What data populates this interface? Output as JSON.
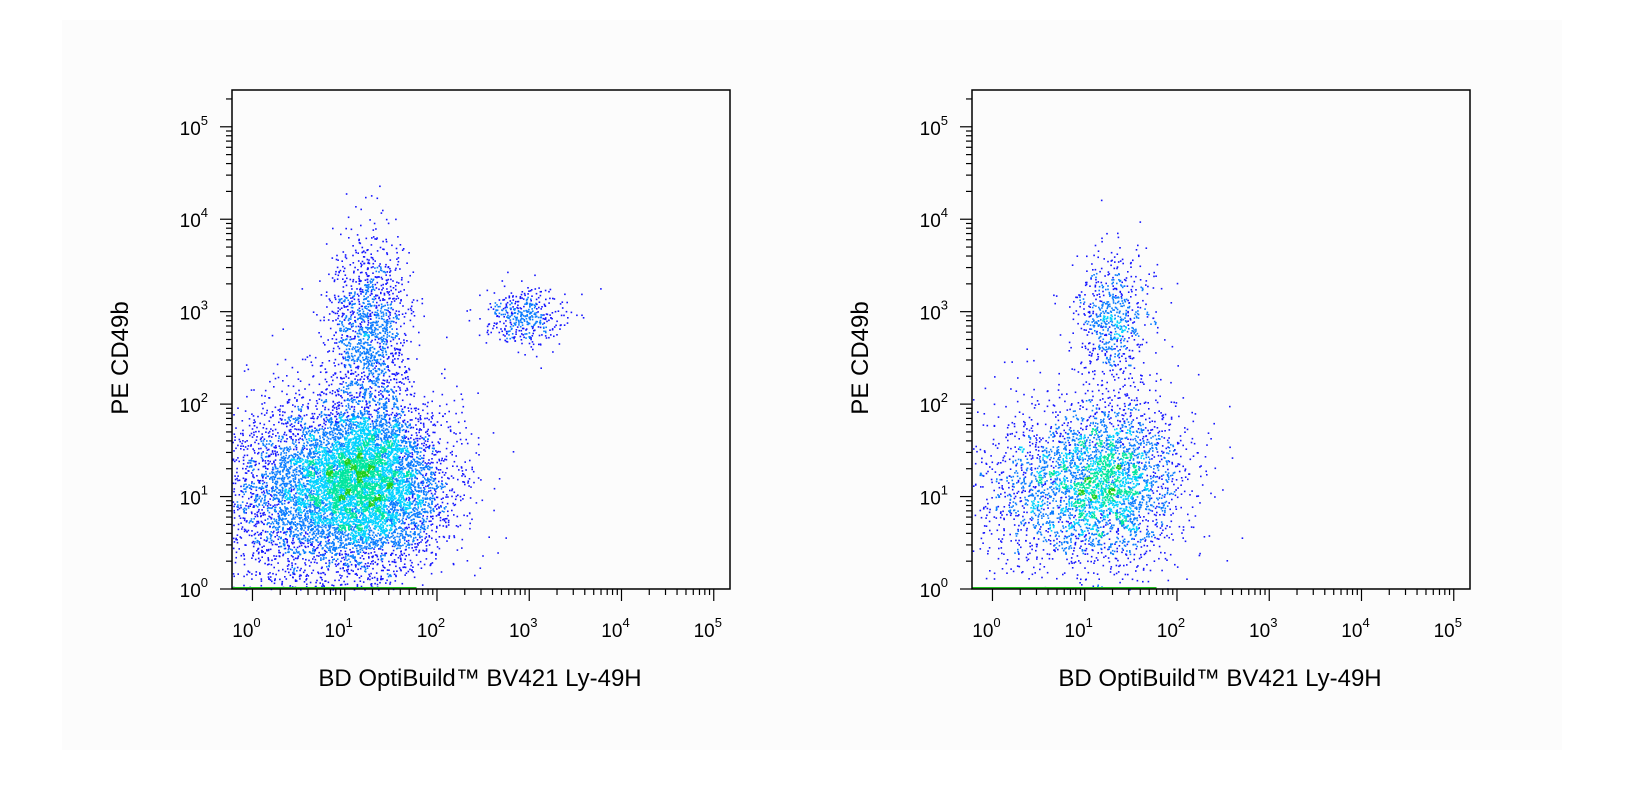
{
  "chart_data": [
    {
      "type": "scatter",
      "plot_style": "density dot plot",
      "xlabel": "BD OptiBuild™ BV421 Ly-49H",
      "ylabel": "PE CD49b",
      "xscale": "log",
      "yscale": "log",
      "xlim": [
        0.6,
        150000
      ],
      "ylim": [
        1,
        250000
      ],
      "x_ticks": [
        "10^0",
        "10^1",
        "10^2",
        "10^3",
        "10^4",
        "10^5"
      ],
      "y_ticks": [
        "10^0",
        "10^1",
        "10^2",
        "10^3",
        "10^4",
        "10^5"
      ],
      "color_scale": [
        "#1515ff",
        "#0a7cff",
        "#00d2ff",
        "#00e6a0",
        "#20d020"
      ],
      "populations": [
        {
          "name_visible": false,
          "center": [
            17,
            15
          ],
          "spread_decades": [
            0.42,
            0.45
          ],
          "count": 6500
        },
        {
          "name_visible": false,
          "center": [
            3,
            10
          ],
          "spread_decades": [
            0.45,
            0.5
          ],
          "count": 2500
        },
        {
          "name_visible": false,
          "center": [
            18,
            700
          ],
          "spread_decades": [
            0.22,
            0.45
          ],
          "count": 1300
        },
        {
          "name_visible": false,
          "center": [
            800,
            900
          ],
          "spread_decades": [
            0.22,
            0.16
          ],
          "count": 420
        }
      ]
    },
    {
      "type": "scatter",
      "plot_style": "density dot plot",
      "xlabel": "BD OptiBuild™ BV421 Ly-49H",
      "ylabel": "PE CD49b",
      "xscale": "log",
      "yscale": "log",
      "xlim": [
        0.6,
        150000
      ],
      "ylim": [
        1,
        250000
      ],
      "x_ticks": [
        "10^0",
        "10^1",
        "10^2",
        "10^3",
        "10^4",
        "10^5"
      ],
      "y_ticks": [
        "10^0",
        "10^1",
        "10^2",
        "10^3",
        "10^4",
        "10^5"
      ],
      "color_scale": [
        "#1515ff",
        "#0a7cff",
        "#00d2ff",
        "#00e6a0",
        "#20d020"
      ],
      "populations": [
        {
          "name_visible": false,
          "center": [
            18,
            15
          ],
          "spread_decades": [
            0.4,
            0.45
          ],
          "count": 2800
        },
        {
          "name_visible": false,
          "center": [
            3,
            12
          ],
          "spread_decades": [
            0.4,
            0.45
          ],
          "count": 900
        },
        {
          "name_visible": false,
          "center": [
            20,
            900
          ],
          "spread_decades": [
            0.2,
            0.35
          ],
          "count": 650
        }
      ]
    }
  ],
  "panels": [
    {
      "ylabel": "PE CD49b",
      "xlabel": "BD OptiBuild™ BV421 Ly-49H"
    },
    {
      "ylabel": "PE CD49b",
      "xlabel": "BD OptiBuild™ BV421 Ly-49H"
    }
  ],
  "tick_base": "10",
  "tick_exponents": [
    "0",
    "1",
    "2",
    "3",
    "4",
    "5"
  ]
}
